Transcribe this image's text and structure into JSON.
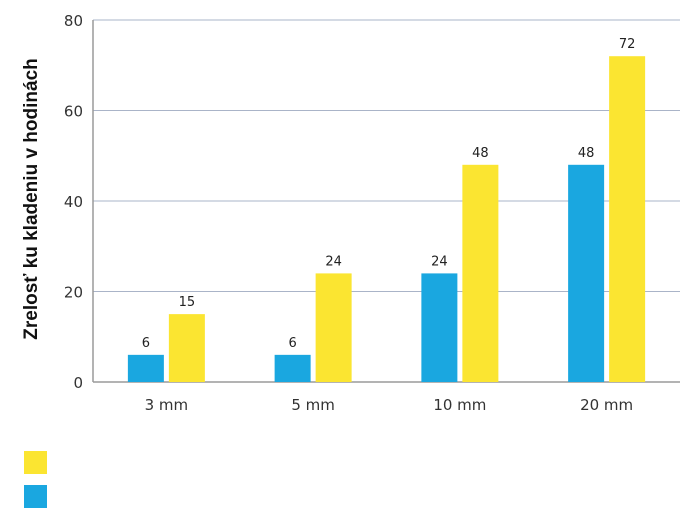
{
  "chart_data": {
    "type": "bar",
    "title": "",
    "xlabel": "",
    "ylabel": "Zrelosť ku kladeniu v hodinách",
    "categories": [
      "3 mm",
      "5 mm",
      "10 mm",
      "20 mm"
    ],
    "series": [
      {
        "name": "",
        "color": "#1aa7e0",
        "values": [
          6,
          6,
          24,
          48
        ]
      },
      {
        "name": "",
        "color": "#fbe531",
        "values": [
          15,
          24,
          48,
          72
        ]
      }
    ],
    "ylim": [
      0,
      80
    ],
    "yticks": [
      0,
      20,
      40,
      60,
      80
    ],
    "grid": true,
    "legend_position": "bottom-left"
  }
}
